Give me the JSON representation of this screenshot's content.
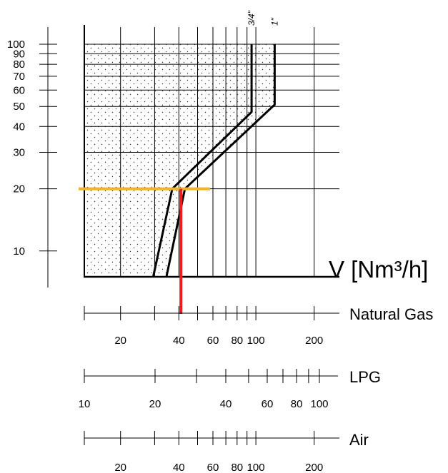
{
  "chart_data": {
    "type": "line",
    "title": "",
    "flow_label": "V [Nm³/h]",
    "flow_scale": "log",
    "y_axis": {
      "scale": "log",
      "range": [
        7.5,
        100
      ],
      "ticks": [
        10,
        20,
        30,
        40,
        50,
        60,
        70,
        80,
        90,
        100
      ],
      "tick_labels": [
        "10",
        "20",
        "30",
        "40",
        "50",
        "60",
        "70",
        "80",
        "90",
        "100"
      ],
      "gridlines": [
        20,
        30,
        40,
        50,
        60,
        70,
        80,
        90,
        100
      ]
    },
    "flow_axis": {
      "range": [
        13,
        270
      ],
      "gridlines": [
        20,
        30,
        40,
        50,
        60,
        70,
        80,
        90,
        100,
        200
      ]
    },
    "scales": [
      {
        "name": "Natural Gas",
        "ticks": [
          20,
          30,
          40,
          50,
          60,
          70,
          80,
          90,
          100,
          200
        ],
        "labels": [
          "20",
          "40",
          "60",
          "80",
          "100",
          "200"
        ],
        "label_values": [
          20,
          40,
          60,
          80,
          100,
          200
        ]
      },
      {
        "name": "LPG",
        "ticks": [
          10,
          20,
          30,
          40,
          50,
          60,
          70,
          80,
          90,
          100
        ],
        "labels": [
          "10",
          "20",
          "40",
          "60",
          "80",
          "100"
        ],
        "label_values": [
          10,
          20,
          40,
          60,
          80,
          100
        ]
      },
      {
        "name": "Air",
        "ticks": [
          20,
          30,
          40,
          50,
          60,
          70,
          80,
          90,
          100,
          200
        ],
        "labels": [
          "20",
          "40",
          "60",
          "80",
          "100",
          "200"
        ],
        "label_values": [
          20,
          40,
          60,
          80,
          100,
          200
        ]
      }
    ],
    "series": [
      {
        "name": "3/4\"",
        "points": [
          [
            29.5,
            7.5
          ],
          [
            37,
            20
          ],
          [
            95,
            47
          ],
          [
            95,
            100
          ]
        ]
      },
      {
        "name": "1\"",
        "points": [
          [
            34.5,
            7.5
          ],
          [
            43,
            20
          ],
          [
            125,
            51
          ],
          [
            125,
            100
          ]
        ]
      }
    ],
    "example": {
      "reading_y": 20,
      "reading_x": 41,
      "colors": {
        "reading_line": "#f2b51b",
        "drop_line": "#ee1c1c"
      }
    }
  }
}
